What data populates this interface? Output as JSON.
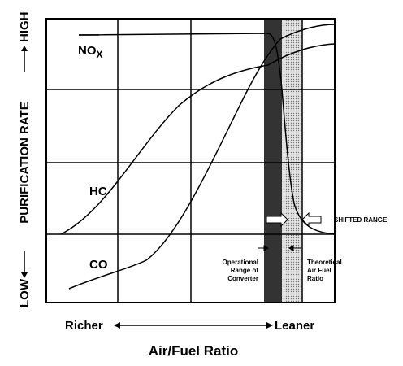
{
  "axis": {
    "y_low": "LOW",
    "y_label": "PURIFICATION RATE",
    "y_high": "HIGH",
    "x_left": "Richer",
    "x_right": "Leaner",
    "x_title": "Air/Fuel Ratio"
  },
  "curves": {
    "nox": "NO",
    "nox_sub": "X",
    "hc": "HC",
    "co": "CO"
  },
  "annotations": {
    "shifted": "SHIFTED RANGE",
    "operational": [
      "Operational",
      "Range of",
      "Converter"
    ],
    "theoretical": [
      "Theoretical",
      "Air Fuel",
      "Ratio"
    ]
  }
}
